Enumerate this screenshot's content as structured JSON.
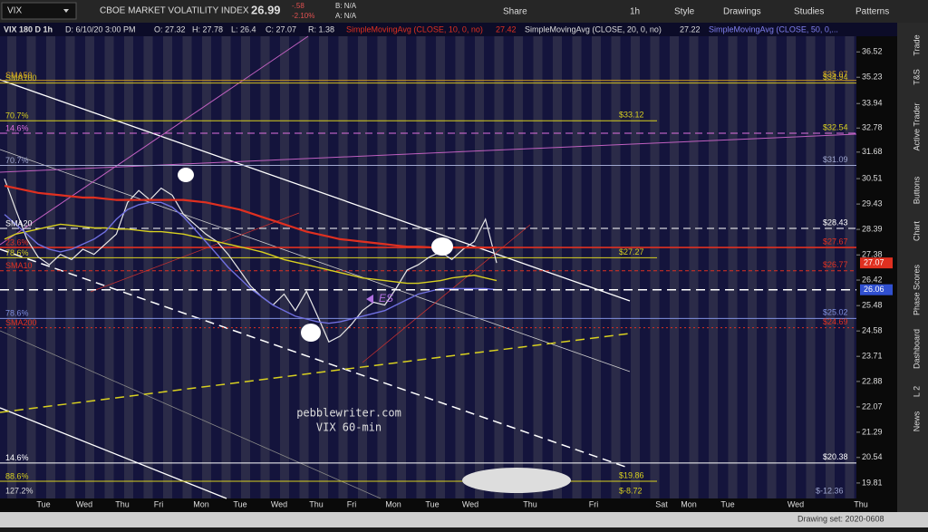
{
  "toolbar": {
    "symbol": "VIX",
    "description": "CBOE MARKET VOLATILITY INDEX",
    "last": "26.99",
    "change": "-.58",
    "change_pct": "-2.10%",
    "bid": "B: N/A",
    "ask": "A: N/A",
    "buttons": [
      "Share",
      "1h",
      "Style",
      "Drawings",
      "Studies",
      "Patterns"
    ]
  },
  "info_bar": {
    "study": "VIX 180 D 1h",
    "date": "D: 6/10/20 3:00 PM",
    "open": "O: 27.32",
    "high": "H: 27.78",
    "low": "L: 26.4",
    "close": "C: 27.07",
    "range": "R: 1.38",
    "sma10": "SimpleMovingAvg (CLOSE, 10, 0, no)",
    "sma10_value": "27.42",
    "sma20": "SimpleMovingAvg (CLOSE, 20, 0, no)",
    "sma20_value": "27.22",
    "sma50": "SimpleMovingAvg (CLOSE, 50, 0,..."
  },
  "sidebar": [
    "Trade",
    "T&S",
    "Active Trader",
    "Buttons",
    "Chart",
    "Phase Scores",
    "Dashboard",
    "L 2",
    "News"
  ],
  "status_bar": {
    "drawing_set": "Drawing set: 2020-0608"
  },
  "chart_data": {
    "type": "line",
    "log_scale": true,
    "ylim": [
      19.38,
      37.34
    ],
    "yticks": [
      36.52,
      35.23,
      33.94,
      32.78,
      31.68,
      30.51,
      29.43,
      28.39,
      27.38,
      26.42,
      25.48,
      24.58,
      23.71,
      22.88,
      22.07,
      21.29,
      20.54,
      19.81
    ],
    "xtick_labels": [
      "Tue",
      "Wed",
      "Thu",
      "Fri",
      "Mon",
      "Tue",
      "Wed",
      "Thu",
      "Fri",
      "Mon",
      "Tue",
      "Wed",
      "Thu",
      "Fri",
      "Sat",
      "Mon",
      "Tue",
      "Wed",
      "Thu"
    ],
    "series": [
      {
        "color": "#e8e8e8",
        "values": [
          30.5,
          29.2,
          28.0,
          27.3,
          27.0,
          27.4,
          27.2,
          27.6,
          27.4,
          27.8,
          28.2,
          29.5,
          30.0,
          29.6,
          30.1,
          29.8,
          29.0,
          28.6,
          28.2,
          27.9,
          27.4,
          26.8,
          26.2,
          25.8,
          25.5,
          25.9,
          25.3,
          26.0,
          25.1,
          24.2,
          24.4,
          24.8,
          25.3,
          25.6,
          25.5,
          26.1,
          26.8,
          27.0,
          27.3,
          27.5,
          27.2,
          27.6,
          27.9,
          28.8,
          27.07
        ]
      },
      {
        "color": "#e03020",
        "values": [
          30.2,
          30.1,
          30.0,
          29.9,
          29.85,
          29.8,
          29.75,
          29.7,
          29.7,
          29.65,
          29.6,
          29.6,
          29.6,
          29.6,
          29.6,
          29.6,
          29.6,
          29.55,
          29.5,
          29.4,
          29.3,
          29.2,
          29.05,
          28.9,
          28.75,
          28.6,
          28.45,
          28.3,
          28.2,
          28.1,
          28.0,
          27.95,
          27.9,
          27.85,
          27.8,
          27.75,
          27.7,
          27.7,
          27.68,
          27.67,
          27.67,
          27.67,
          27.67,
          27.67,
          27.67
        ]
      },
      {
        "color": "#d8d020",
        "values": [
          28.0,
          28.2,
          28.3,
          28.4,
          28.5,
          28.6,
          28.55,
          28.5,
          28.45,
          28.45,
          28.4,
          28.4,
          28.35,
          28.3,
          28.3,
          28.25,
          28.2,
          28.1,
          28.0,
          27.9,
          27.8,
          27.7,
          27.6,
          27.5,
          27.35,
          27.2,
          27.1,
          27.0,
          26.9,
          26.8,
          26.7,
          26.6,
          26.5,
          26.45,
          26.4,
          26.35,
          26.3,
          26.3,
          26.35,
          26.4,
          26.5,
          26.55,
          26.6,
          26.5,
          26.4
        ]
      },
      {
        "color": "#7070e0",
        "values": [
          29.0,
          28.6,
          28.2,
          27.8,
          27.6,
          27.5,
          27.6,
          27.8,
          28.0,
          28.3,
          28.8,
          29.2,
          29.4,
          29.5,
          29.5,
          29.3,
          28.9,
          28.4,
          27.9,
          27.4,
          26.9,
          26.5,
          26.1,
          25.8,
          25.5,
          25.3,
          25.1,
          25.0,
          24.9,
          24.85,
          24.9,
          25.0,
          25.1,
          25.2,
          25.3,
          25.5,
          25.7,
          25.9,
          26.0,
          26.1,
          26.1,
          26.1,
          26.1,
          26.1,
          26.06
        ]
      }
    ],
    "levels": [
      {
        "value": 35.07,
        "label": "$35.07",
        "tag": "SMA50",
        "color": "#d4a020"
      },
      {
        "value": 34.94,
        "label": "$34.94",
        "tag": "SMA100",
        "color": "#d4c020"
      },
      {
        "value": 33.12,
        "label": "$33.12",
        "tag": "70.7%",
        "color": "#d8d020"
      },
      {
        "value": 32.54,
        "label": "$32.54",
        "tag": "14.6%",
        "color": "#e070e0"
      },
      {
        "value": 31.09,
        "label": "$31.09",
        "tag": "70.7%",
        "color": "#a0a8d0"
      },
      {
        "value": 28.43,
        "label": "$28.43",
        "tag": "SMA20",
        "color": "#ffffff"
      },
      {
        "value": 27.67,
        "label": "$27.67",
        "tag": "23.6%",
        "color": "#e03020"
      },
      {
        "value": 27.27,
        "label": "$27.27",
        "tag": "78.6%",
        "color": "#d8d020"
      },
      {
        "value": 26.77,
        "label": "$26.77",
        "tag": "SMA10",
        "color": "#e03020"
      },
      {
        "value": 25.02,
        "label": "$25.02",
        "tag": "78.6%",
        "color": "#8090e0"
      },
      {
        "value": 24.69,
        "label": "$24.69",
        "tag": "SMA200",
        "color": "#e03020"
      },
      {
        "value": 20.38,
        "label": "$20.38",
        "tag": "14.6%",
        "color": "#ffffff"
      },
      {
        "value": 19.86,
        "label": "$19.86",
        "tag": "88.6%",
        "color": "#d8d020"
      }
    ],
    "price_markers": [
      {
        "value": 27.07,
        "label": "27.07",
        "color": "#e03020"
      },
      {
        "value": 26.06,
        "label": "26.06",
        "color": "#3050d0"
      }
    ],
    "annotations": {
      "site": "pebblewriter.com",
      "caption": "VIX 60-min",
      "es": "ES",
      "fib_bottom": "127.2%",
      "low_left": "$-8.72",
      "low_right": "$-12.36"
    }
  }
}
